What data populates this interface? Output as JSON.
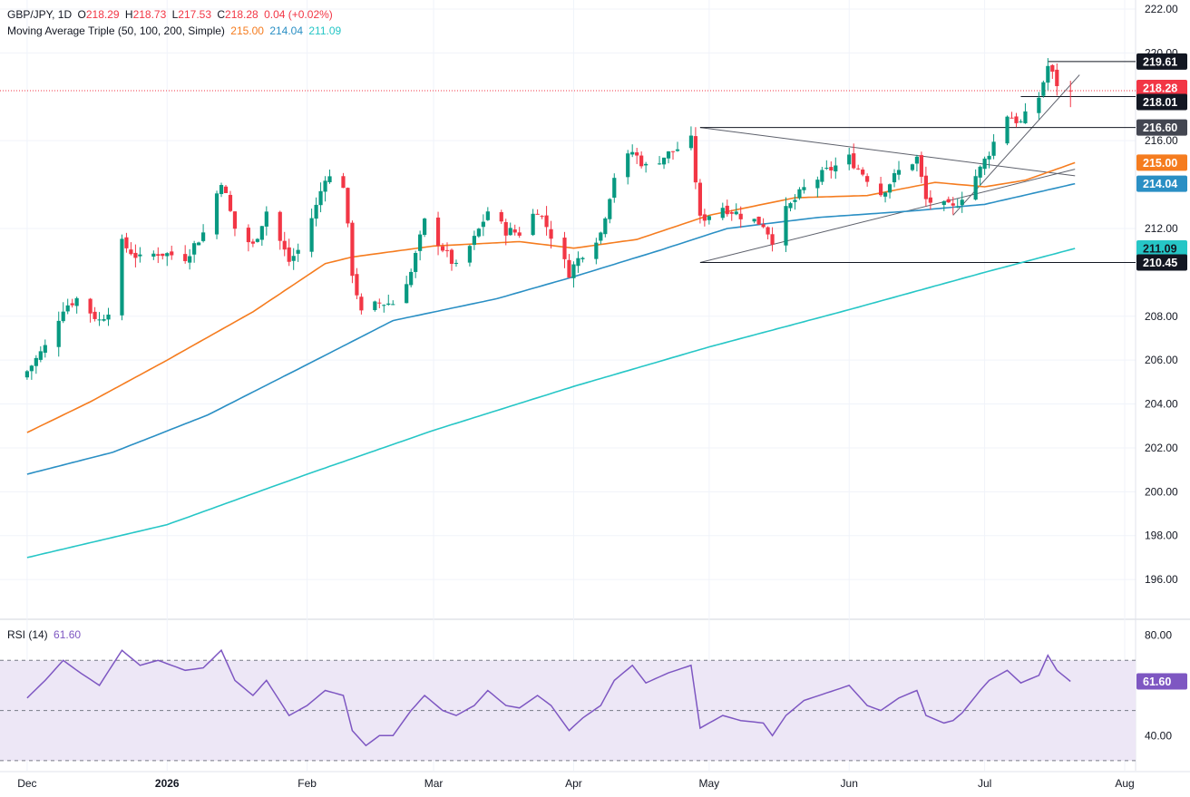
{
  "legend": {
    "symbol": "GBP/JPY, 1D",
    "o_label": "O",
    "o_value": "218.29",
    "h_label": "H",
    "h_value": "218.73",
    "l_label": "L",
    "l_value": "217.53",
    "c_label": "C",
    "c_value": "218.28",
    "change": "0.04 (+0.02%)",
    "ma_title": "Moving Average Triple (50, 100, 200, Simple)",
    "ma50_value": "215.00",
    "ma100_value": "214.04",
    "ma200_value": "211.09",
    "rsi_title": "RSI (14)",
    "rsi_value": "61.60"
  },
  "colors": {
    "up": "#089981",
    "down": "#f23645",
    "ma50": "#f57c1f",
    "ma100": "#2a8fc4",
    "ma200": "#26c6c6",
    "rsi": "#7e57c2",
    "rsi_band": "#ede7f6",
    "grid": "#f0f3fa",
    "text": "#131722"
  },
  "chart_data": [
    {
      "type": "candlestick",
      "ylim": [
        194.6,
        222.0
      ],
      "price_ticks": [
        "222.00",
        "220.00",
        "216.00",
        "212.00",
        "208.00",
        "206.00",
        "204.00",
        "202.00",
        "200.00",
        "198.00",
        "196.00"
      ],
      "time_ticks": [
        "Dec",
        "2026",
        "Feb",
        "Mar",
        "Apr",
        "May",
        "Jun",
        "Jul",
        "Aug"
      ],
      "close_path": [
        [
          "2025-12-01",
          205.5
        ],
        [
          "2025-12-05",
          206.6
        ],
        [
          "2025-12-09",
          208.4
        ],
        [
          "2025-12-12",
          208.8
        ],
        [
          "2025-12-17",
          207.8
        ],
        [
          "2025-12-19",
          208.3
        ],
        [
          "2025-12-22",
          211.3
        ],
        [
          "2025-12-26",
          210.6
        ],
        [
          "2025-12-30",
          210.9
        ],
        [
          "2026-01-05",
          210.7
        ],
        [
          "2026-01-09",
          211.8
        ],
        [
          "2026-01-13",
          214.2
        ],
        [
          "2026-01-16",
          212.0
        ],
        [
          "2026-01-20",
          211.2
        ],
        [
          "2026-01-23",
          212.8
        ],
        [
          "2026-01-28",
          210.5
        ],
        [
          "2026-01-30",
          211.0
        ],
        [
          "2026-02-03",
          213.0
        ],
        [
          "2026-02-05",
          214.4
        ],
        [
          "2026-02-09",
          214.0
        ],
        [
          "2026-02-11",
          210.0
        ],
        [
          "2026-02-13",
          208.1
        ],
        [
          "2026-02-17",
          208.6
        ],
        [
          "2026-02-20",
          208.6
        ],
        [
          "2026-02-24",
          210.0
        ],
        [
          "2026-02-27",
          212.3
        ],
        [
          "2026-03-03",
          211.1
        ],
        [
          "2026-03-06",
          210.2
        ],
        [
          "2026-03-10",
          211.5
        ],
        [
          "2026-03-13",
          212.8
        ],
        [
          "2026-03-17",
          211.9
        ],
        [
          "2026-03-20",
          211.8
        ],
        [
          "2026-03-24",
          212.9
        ],
        [
          "2026-03-27",
          211.7
        ],
        [
          "2026-03-31",
          210.0
        ],
        [
          "2026-04-03",
          210.9
        ],
        [
          "2026-04-07",
          211.8
        ],
        [
          "2026-04-10",
          214.4
        ],
        [
          "2026-04-14",
          215.5
        ],
        [
          "2026-04-17",
          214.8
        ],
        [
          "2026-04-22",
          215.4
        ],
        [
          "2026-04-27",
          216.0
        ],
        [
          "2026-04-29",
          212.4
        ],
        [
          "2026-05-04",
          213.0
        ],
        [
          "2026-05-08",
          212.6
        ],
        [
          "2026-05-13",
          212.2
        ],
        [
          "2026-05-15",
          211.5
        ],
        [
          "2026-05-18",
          212.8
        ],
        [
          "2026-05-22",
          213.8
        ],
        [
          "2026-05-27",
          214.6
        ],
        [
          "2026-06-01",
          215.2
        ],
        [
          "2026-06-05",
          214.3
        ],
        [
          "2026-06-08",
          213.6
        ],
        [
          "2026-06-12",
          214.6
        ],
        [
          "2026-06-16",
          215.2
        ],
        [
          "2026-06-18",
          213.3
        ],
        [
          "2026-06-22",
          213.0
        ],
        [
          "2026-06-24",
          212.9
        ],
        [
          "2026-06-26",
          213.5
        ],
        [
          "2026-06-30",
          214.7
        ],
        [
          "2026-07-02",
          215.5
        ],
        [
          "2026-07-06",
          217.2
        ],
        [
          "2026-07-09",
          216.8
        ],
        [
          "2026-07-13",
          218.0
        ],
        [
          "2026-07-15",
          219.4
        ],
        [
          "2026-07-17",
          218.6
        ],
        [
          "2026-07-20",
          218.28
        ]
      ],
      "series": [
        {
          "name": "MA 50",
          "last_value": 215.0,
          "points": [
            [
              "2025-12-01",
              202.7
            ],
            [
              "2025-12-15",
              204.1
            ],
            [
              "2026-01-01",
              206.0
            ],
            [
              "2026-01-20",
              208.2
            ],
            [
              "2026-02-05",
              210.4
            ],
            [
              "2026-02-11",
              210.7
            ],
            [
              "2026-03-01",
              211.2
            ],
            [
              "2026-03-20",
              211.4
            ],
            [
              "2026-04-01",
              211.1
            ],
            [
              "2026-04-15",
              211.5
            ],
            [
              "2026-05-01",
              212.6
            ],
            [
              "2026-05-20",
              213.4
            ],
            [
              "2026-06-05",
              213.5
            ],
            [
              "2026-06-20",
              214.1
            ],
            [
              "2026-07-01",
              213.9
            ],
            [
              "2026-07-10",
              214.2
            ],
            [
              "2026-07-21",
              215.0
            ]
          ]
        },
        {
          "name": "MA 100",
          "last_value": 214.04,
          "points": [
            [
              "2025-12-01",
              200.8
            ],
            [
              "2025-12-20",
              201.8
            ],
            [
              "2026-01-10",
              203.5
            ],
            [
              "2026-02-01",
              205.8
            ],
            [
              "2026-02-20",
              207.8
            ],
            [
              "2026-03-15",
              208.8
            ],
            [
              "2026-04-01",
              209.8
            ],
            [
              "2026-04-20",
              211.0
            ],
            [
              "2026-05-05",
              212.0
            ],
            [
              "2026-05-25",
              212.5
            ],
            [
              "2026-06-15",
              212.8
            ],
            [
              "2026-07-01",
              213.1
            ],
            [
              "2026-07-21",
              214.04
            ]
          ]
        },
        {
          "name": "MA 200",
          "last_value": 211.09,
          "points": [
            [
              "2025-12-01",
              197.0
            ],
            [
              "2026-01-01",
              198.5
            ],
            [
              "2026-02-01",
              200.8
            ],
            [
              "2026-03-01",
              202.8
            ],
            [
              "2026-04-01",
              204.8
            ],
            [
              "2026-05-01",
              206.6
            ],
            [
              "2026-06-01",
              208.3
            ],
            [
              "2026-07-01",
              210.0
            ],
            [
              "2026-07-21",
              211.09
            ]
          ]
        }
      ],
      "levels": [
        {
          "label": "219.61",
          "value": 219.61
        },
        {
          "label": "218.01",
          "value": 218.01
        },
        {
          "label": "216.60",
          "value": 216.6
        },
        {
          "label": "210.45",
          "value": 210.45
        }
      ],
      "last_price": {
        "label": "218.28",
        "value": 218.28
      }
    },
    {
      "type": "line",
      "title": "RSI (14)",
      "ylim": [
        26,
        86
      ],
      "y_ticks": [
        "80.00",
        "40.00"
      ],
      "band": [
        30,
        70
      ],
      "midline": 50,
      "last_value": 61.6,
      "points": [
        [
          "2025-12-01",
          55
        ],
        [
          "2025-12-05",
          62
        ],
        [
          "2025-12-09",
          70
        ],
        [
          "2025-12-12",
          66
        ],
        [
          "2025-12-17",
          60
        ],
        [
          "2025-12-22",
          74
        ],
        [
          "2025-12-26",
          68
        ],
        [
          "2025-12-30",
          70
        ],
        [
          "2026-01-05",
          66
        ],
        [
          "2026-01-09",
          67
        ],
        [
          "2026-01-13",
          74
        ],
        [
          "2026-01-16",
          62
        ],
        [
          "2026-01-20",
          56
        ],
        [
          "2026-01-23",
          62
        ],
        [
          "2026-01-28",
          48
        ],
        [
          "2026-02-01",
          52
        ],
        [
          "2026-02-05",
          58
        ],
        [
          "2026-02-09",
          56
        ],
        [
          "2026-02-11",
          42
        ],
        [
          "2026-02-14",
          36
        ],
        [
          "2026-02-17",
          40
        ],
        [
          "2026-02-20",
          40
        ],
        [
          "2026-02-24",
          50
        ],
        [
          "2026-02-27",
          56
        ],
        [
          "2026-03-03",
          50
        ],
        [
          "2026-03-06",
          48
        ],
        [
          "2026-03-10",
          52
        ],
        [
          "2026-03-13",
          58
        ],
        [
          "2026-03-17",
          52
        ],
        [
          "2026-03-20",
          51
        ],
        [
          "2026-03-24",
          56
        ],
        [
          "2026-03-27",
          52
        ],
        [
          "2026-03-31",
          42
        ],
        [
          "2026-04-03",
          47
        ],
        [
          "2026-04-07",
          52
        ],
        [
          "2026-04-10",
          62
        ],
        [
          "2026-04-14",
          68
        ],
        [
          "2026-04-17",
          61
        ],
        [
          "2026-04-22",
          65
        ],
        [
          "2026-04-27",
          68
        ],
        [
          "2026-04-29",
          43
        ],
        [
          "2026-05-04",
          48
        ],
        [
          "2026-05-08",
          46
        ],
        [
          "2026-05-13",
          45
        ],
        [
          "2026-05-15",
          40
        ],
        [
          "2026-05-18",
          48
        ],
        [
          "2026-05-22",
          54
        ],
        [
          "2026-05-27",
          57
        ],
        [
          "2026-06-01",
          60
        ],
        [
          "2026-06-05",
          52
        ],
        [
          "2026-06-08",
          50
        ],
        [
          "2026-06-12",
          55
        ],
        [
          "2026-06-16",
          58
        ],
        [
          "2026-06-18",
          48
        ],
        [
          "2026-06-22",
          45
        ],
        [
          "2026-06-24",
          46
        ],
        [
          "2026-06-26",
          49
        ],
        [
          "2026-06-30",
          58
        ],
        [
          "2026-07-02",
          62
        ],
        [
          "2026-07-06",
          66
        ],
        [
          "2026-07-09",
          61
        ],
        [
          "2026-07-13",
          64
        ],
        [
          "2026-07-15",
          72
        ],
        [
          "2026-07-17",
          66
        ],
        [
          "2026-07-20",
          61.6
        ]
      ]
    }
  ]
}
